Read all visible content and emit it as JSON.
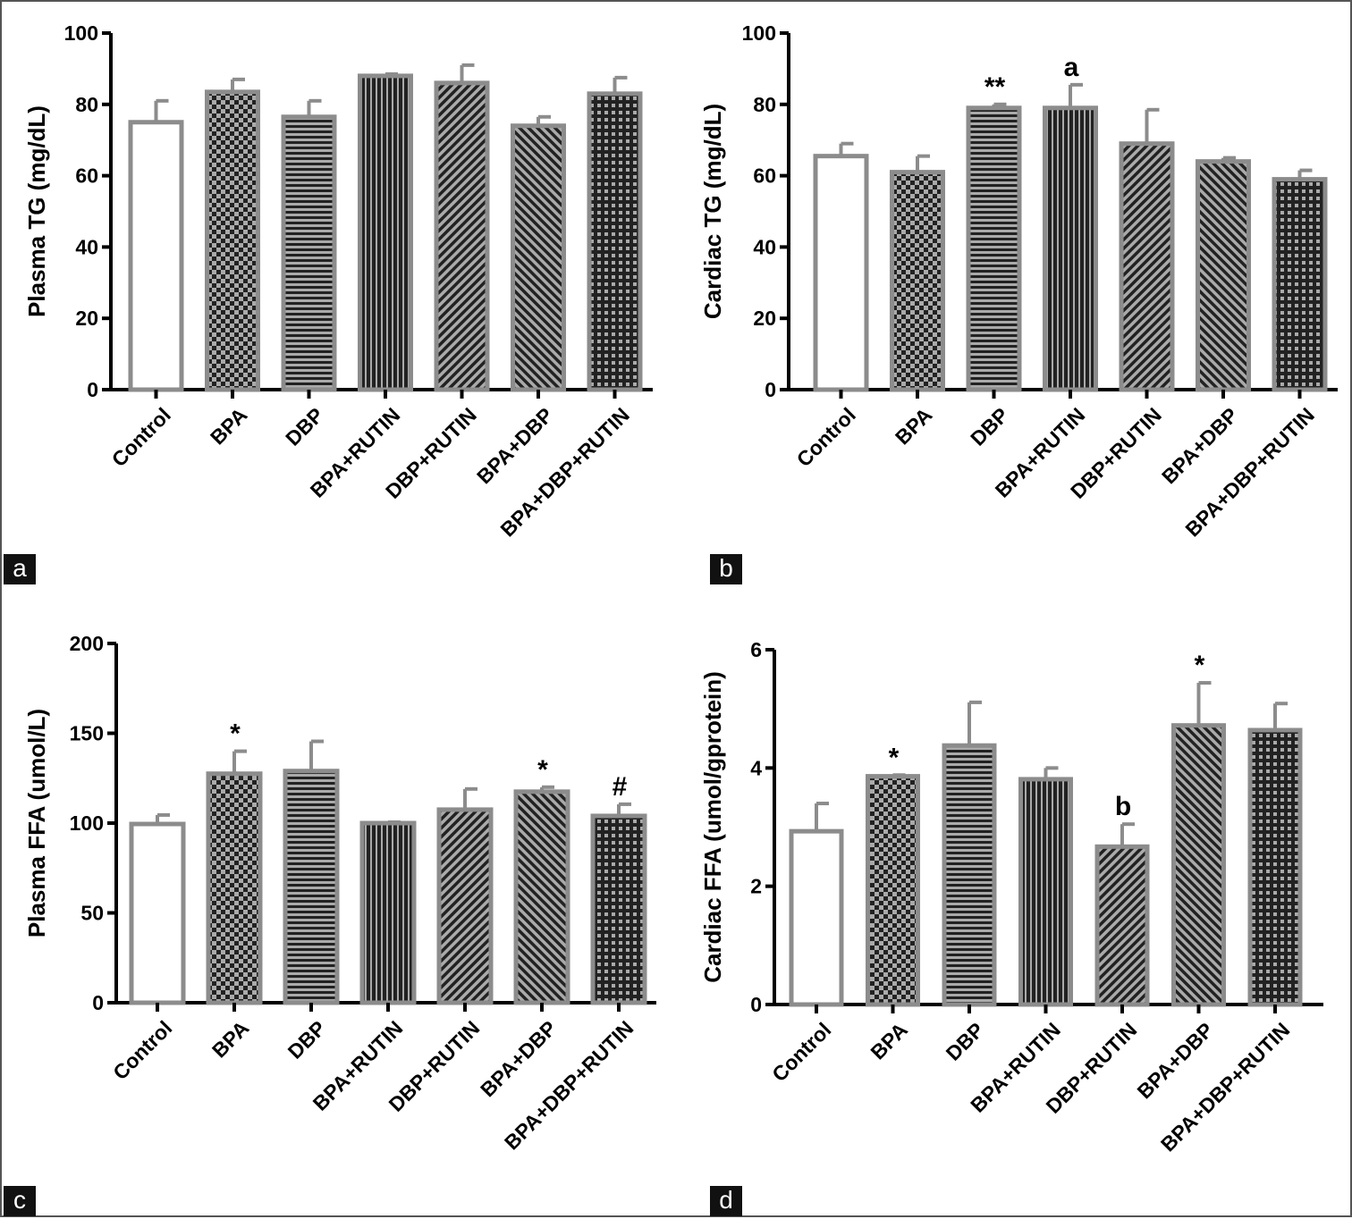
{
  "chart_data": [
    {
      "panel": "a",
      "type": "bar",
      "ylabel": "Plasma TG (mg/dL)",
      "ylim": [
        0,
        100
      ],
      "yticks": [
        0,
        20,
        40,
        60,
        80,
        100
      ],
      "categories": [
        "Control",
        "BPA",
        "DBP",
        "BPA+RUTIN",
        "DBP+RUTIN",
        "BPA+DBP",
        "BPA+DBP+RUTIN"
      ],
      "values": [
        75,
        83.5,
        76.5,
        88,
        86,
        74,
        83
      ],
      "errors": [
        6,
        3.5,
        4.5,
        0.5,
        5,
        2.5,
        4.5
      ],
      "annotations": [
        "",
        "",
        "",
        "",
        "",
        "",
        ""
      ],
      "patterns": [
        "none",
        "checker",
        "hlines",
        "vlines",
        "diag-up",
        "diag-down",
        "grid"
      ],
      "grid": false
    },
    {
      "panel": "b",
      "type": "bar",
      "ylabel": "Cardiac TG (mg/dL)",
      "ylim": [
        0,
        100
      ],
      "yticks": [
        0,
        20,
        40,
        60,
        80,
        100
      ],
      "categories": [
        "Control",
        "BPA",
        "DBP",
        "BPA+RUTIN",
        "DBP+RUTIN",
        "BPA+DBP",
        "BPA+DBP+RUTIN"
      ],
      "values": [
        65.5,
        61,
        79,
        79,
        69,
        64,
        59
      ],
      "errors": [
        3.5,
        4.5,
        1,
        6.5,
        9.5,
        1,
        2.5
      ],
      "annotations": [
        "",
        "",
        "**",
        "a",
        "",
        "",
        ""
      ],
      "patterns": [
        "none",
        "checker",
        "hlines",
        "vlines",
        "diag-up",
        "diag-down",
        "grid"
      ],
      "grid": false
    },
    {
      "panel": "c",
      "type": "bar",
      "ylabel": "Plasma FFA (umol/L)",
      "ylim": [
        0,
        200
      ],
      "yticks": [
        0,
        50,
        100,
        150,
        200
      ],
      "categories": [
        "Control",
        "BPA",
        "DBP",
        "BPA+RUTIN",
        "DBP+RUTIN",
        "BPA+DBP",
        "BPA+DBP+RUTIN"
      ],
      "values": [
        99.5,
        127.5,
        129,
        100,
        107.5,
        117.5,
        104
      ],
      "errors": [
        5,
        12.5,
        16.5,
        0.5,
        11.5,
        2.5,
        6.5
      ],
      "annotations": [
        "",
        "*",
        "",
        "",
        "",
        "*",
        "#"
      ],
      "patterns": [
        "none",
        "checker",
        "hlines",
        "vlines",
        "diag-up",
        "diag-down",
        "grid"
      ],
      "grid": false
    },
    {
      "panel": "d",
      "type": "bar",
      "ylabel": "Cardiac FFA (umol/gprotein)",
      "ylim": [
        0,
        6
      ],
      "yticks": [
        0,
        2,
        4,
        6
      ],
      "categories": [
        "Control",
        "BPA",
        "DBP",
        "BPA+RUTIN",
        "DBP+RUTIN",
        "BPA+DBP",
        "BPA+DBP+RUTIN"
      ],
      "values": [
        2.93,
        3.86,
        4.38,
        3.81,
        2.67,
        4.72,
        4.64
      ],
      "errors": [
        0.47,
        0.02,
        0.73,
        0.19,
        0.38,
        0.72,
        0.45
      ],
      "annotations": [
        "",
        "*",
        "",
        "",
        "b",
        "*",
        ""
      ],
      "patterns": [
        "none",
        "checker",
        "hlines",
        "vlines",
        "diag-up",
        "diag-down",
        "grid"
      ],
      "grid": false
    }
  ],
  "panel_letters": [
    "a",
    "b",
    "c",
    "d"
  ],
  "colors": {
    "bar_border": "#8c8c8c",
    "bar_fill": "#222222",
    "pattern_light": "#aaaaaa",
    "axis": "#000000"
  }
}
